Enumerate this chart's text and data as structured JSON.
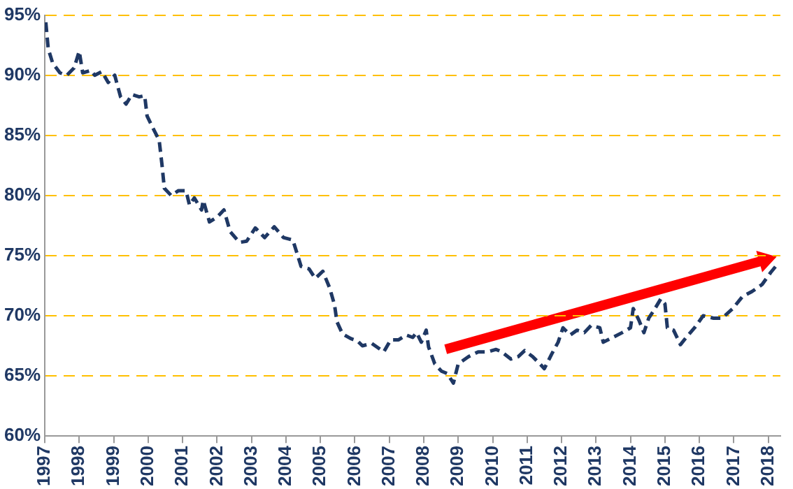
{
  "chart_data": {
    "type": "line",
    "xlim": [
      1997,
      2018.35
    ],
    "ylim": [
      60,
      95
    ],
    "xticks": [
      1997,
      1998,
      1999,
      2000,
      2001,
      2002,
      2003,
      2004,
      2005,
      2006,
      2007,
      2008,
      2009,
      2010,
      2011,
      2012,
      2013,
      2014,
      2015,
      2016,
      2017,
      2018
    ],
    "yticks": [
      {
        "value": 60,
        "label": "60%"
      },
      {
        "value": 65,
        "label": "65%"
      },
      {
        "value": 70,
        "label": "70%"
      },
      {
        "value": 75,
        "label": "75%"
      },
      {
        "value": 80,
        "label": "80%"
      },
      {
        "value": 85,
        "label": "85%"
      },
      {
        "value": 90,
        "label": "90%"
      },
      {
        "value": 95,
        "label": "95%"
      }
    ],
    "grid": "y",
    "legend": false,
    "marker": "none",
    "series": [
      {
        "color": "#1f3864",
        "line_style": "dashed",
        "x": [
          1997.03,
          1997.1,
          1997.23,
          1997.44,
          1997.64,
          1997.85,
          1998.0,
          1998.1,
          1998.34,
          1998.45,
          1998.66,
          1998.84,
          1999.03,
          1999.2,
          1999.36,
          1999.53,
          1999.74,
          1999.9,
          1999.97,
          2000.14,
          2000.32,
          2000.4,
          2000.47,
          2000.67,
          2000.88,
          2001.1,
          2001.2,
          2001.34,
          2001.55,
          2001.6,
          2001.78,
          2002.0,
          2002.2,
          2002.38,
          2002.65,
          2002.86,
          2003.11,
          2003.38,
          2003.66,
          2003.93,
          2004.2,
          2004.44,
          2004.67,
          2004.85,
          2005.07,
          2005.27,
          2005.41,
          2005.48,
          2005.64,
          2005.88,
          2006.08,
          2006.22,
          2006.49,
          2006.84,
          2007.04,
          2007.27,
          2007.49,
          2007.68,
          2007.79,
          2007.93,
          2008.07,
          2008.14,
          2008.32,
          2008.51,
          2008.68,
          2008.86,
          2009.0,
          2009.3,
          2009.58,
          2009.85,
          2010.1,
          2010.26,
          2010.53,
          2010.74,
          2010.93,
          2011.16,
          2011.37,
          2011.5,
          2011.71,
          2011.9,
          2012.04,
          2012.25,
          2012.45,
          2012.66,
          2012.86,
          2013.11,
          2013.21,
          2013.49,
          2013.76,
          2014.0,
          2014.08,
          2014.25,
          2014.39,
          2014.53,
          2014.67,
          2014.88,
          2015.0,
          2015.07,
          2015.25,
          2015.45,
          2015.62,
          2015.86,
          2016.11,
          2016.41,
          2016.66,
          2016.97,
          2017.25,
          2017.52,
          2017.82,
          2018.07,
          2018.3
        ],
        "values": [
          94.4,
          92.2,
          91.0,
          90.2,
          90.0,
          90.6,
          92.0,
          90.2,
          90.4,
          90.0,
          90.3,
          89.4,
          90.0,
          88.2,
          87.6,
          88.4,
          88.2,
          88.3,
          86.6,
          85.6,
          84.6,
          82.6,
          80.6,
          80.0,
          80.4,
          80.4,
          79.2,
          79.8,
          78.8,
          79.6,
          77.8,
          78.2,
          78.8,
          77.0,
          76.1,
          76.2,
          77.3,
          76.5,
          77.4,
          76.5,
          76.3,
          74.1,
          73.9,
          73.1,
          73.7,
          72.3,
          70.9,
          69.5,
          68.5,
          68.1,
          67.9,
          67.5,
          67.7,
          67.0,
          68.0,
          68.0,
          68.4,
          68.2,
          68.6,
          67.8,
          68.8,
          67.4,
          66.0,
          65.4,
          65.2,
          64.4,
          66.0,
          66.6,
          67.0,
          67.0,
          67.2,
          67.0,
          66.4,
          66.6,
          67.1,
          66.6,
          66.0,
          65.6,
          66.8,
          67.8,
          69.0,
          68.4,
          68.8,
          68.6,
          69.2,
          69.0,
          67.8,
          68.2,
          68.6,
          69.0,
          70.6,
          69.6,
          68.6,
          69.8,
          70.4,
          71.4,
          71.0,
          69.0,
          68.8,
          67.6,
          68.2,
          69.0,
          70.0,
          69.8,
          69.8,
          70.6,
          71.6,
          72.0,
          72.6,
          73.6,
          74.4
        ]
      }
    ]
  }
}
